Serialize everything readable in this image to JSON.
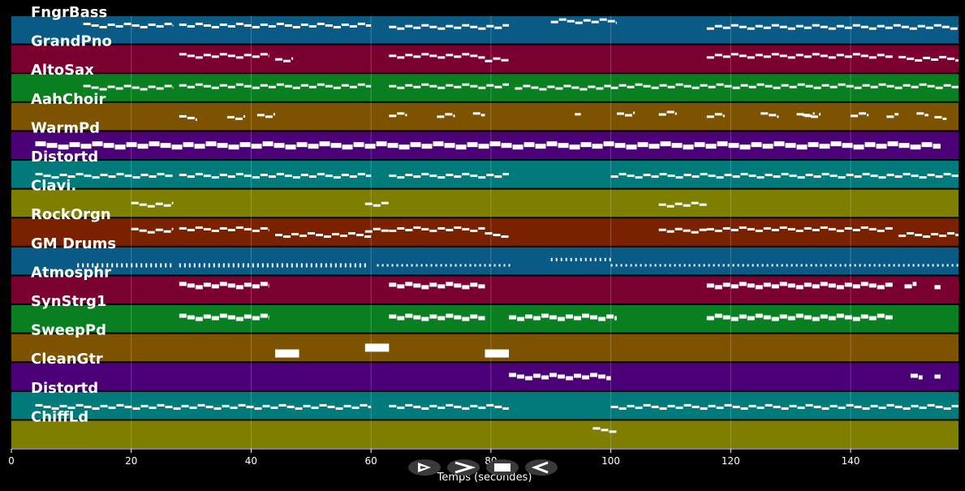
{
  "chart_data": {
    "type": "piano-roll",
    "xlabel": "Temps (secondes)",
    "xlim": [
      0,
      158
    ],
    "xticks": [
      0,
      20,
      40,
      60,
      80,
      100,
      120,
      140
    ],
    "tracks": [
      {
        "name": "FngrBass",
        "color": "#0a5a86",
        "segments": [
          [
            12,
            27,
            0.35
          ],
          [
            28,
            60,
            0.35
          ],
          [
            63,
            83,
            0.4
          ],
          [
            90,
            101,
            0.2
          ],
          [
            116,
            158,
            0.4
          ]
        ],
        "style": "thin"
      },
      {
        "name": "GrandPno",
        "color": "#7a0030",
        "segments": [
          [
            28,
            43,
            0.4
          ],
          [
            44,
            47,
            0.55
          ],
          [
            63,
            79,
            0.4
          ],
          [
            79,
            83,
            0.55
          ],
          [
            116,
            147,
            0.4
          ],
          [
            148,
            158,
            0.5
          ]
        ],
        "style": "thin"
      },
      {
        "name": "AltoSax",
        "color": "#0a7f22",
        "segments": [
          [
            12,
            27,
            0.5
          ],
          [
            28,
            60,
            0.45
          ],
          [
            63,
            83,
            0.45
          ],
          [
            84,
            100,
            0.5
          ],
          [
            100,
            158,
            0.45
          ]
        ],
        "style": "thin"
      },
      {
        "name": "AahChoir",
        "color": "#7d5200",
        "segments": [
          [
            28,
            31,
            0.55
          ],
          [
            36,
            39,
            0.55
          ],
          [
            41,
            44,
            0.45
          ],
          [
            63,
            66,
            0.45
          ],
          [
            71,
            74,
            0.45
          ],
          [
            77,
            79,
            0.45
          ],
          [
            94,
            95,
            0.45
          ],
          [
            101,
            104,
            0.4
          ],
          [
            108,
            111,
            0.4
          ],
          [
            116,
            119,
            0.45
          ],
          [
            125,
            128,
            0.45
          ],
          [
            131,
            134,
            0.45
          ],
          [
            132,
            135,
            0.45
          ],
          [
            140,
            143,
            0.45
          ],
          [
            146,
            148,
            0.45
          ],
          [
            151,
            153,
            0.45
          ],
          [
            154,
            156,
            0.55
          ]
        ],
        "style": "thin"
      },
      {
        "name": "WarmPd",
        "color": "#4b0078",
        "segments": [
          [
            4,
            155,
            0.5
          ]
        ],
        "style": "thick"
      },
      {
        "name": "Distortd",
        "color": "#007a7a",
        "segments": [
          [
            4,
            27,
            0.55
          ],
          [
            28,
            60,
            0.55
          ],
          [
            63,
            83,
            0.55
          ],
          [
            100,
            158,
            0.55
          ]
        ],
        "style": "thin"
      },
      {
        "name": "Clavi.",
        "color": "#7e7e00",
        "segments": [
          [
            20,
            27,
            0.55
          ],
          [
            59,
            63,
            0.55
          ],
          [
            108,
            116,
            0.55
          ]
        ],
        "style": "thin"
      },
      {
        "name": "RockOrgn",
        "color": "#7a2200",
        "segments": [
          [
            20,
            27,
            0.45
          ],
          [
            28,
            43,
            0.4
          ],
          [
            44,
            60,
            0.6
          ],
          [
            59,
            63,
            0.45
          ],
          [
            63,
            79,
            0.4
          ],
          [
            79,
            83,
            0.6
          ],
          [
            108,
            116,
            0.45
          ],
          [
            116,
            147,
            0.4
          ],
          [
            148,
            158,
            0.6
          ]
        ],
        "style": "thin"
      },
      {
        "name": "GM Drums",
        "color": "#0a5a86",
        "segments": [
          [
            11,
            27,
            0.65
          ],
          [
            28,
            59,
            0.65
          ],
          [
            61,
            83,
            0.65
          ],
          [
            90,
            100,
            0.45
          ],
          [
            100,
            158,
            0.65
          ]
        ],
        "style": "dotted"
      },
      {
        "name": "Atmosphr",
        "color": "#7a0030",
        "segments": [
          [
            28,
            43,
            0.35
          ],
          [
            63,
            79,
            0.35
          ],
          [
            116,
            147,
            0.35
          ],
          [
            149,
            151,
            0.35
          ],
          [
            154,
            155,
            0.35
          ]
        ],
        "style": "medium"
      },
      {
        "name": "SynStrg1",
        "color": "#0a7f22",
        "segments": [
          [
            28,
            43,
            0.45
          ],
          [
            63,
            79,
            0.45
          ],
          [
            83,
            101,
            0.45
          ],
          [
            116,
            147,
            0.45
          ]
        ],
        "style": "medium"
      },
      {
        "name": "SweepPd",
        "color": "#7d5200",
        "segments": [
          [
            44,
            48,
            0.7
          ],
          [
            59,
            63,
            0.5
          ],
          [
            79,
            83,
            0.7
          ]
        ],
        "style": "block"
      },
      {
        "name": "CleanGtr",
        "color": "#4b0078",
        "segments": [
          [
            83,
            100,
            0.5
          ],
          [
            150,
            152,
            0.5
          ],
          [
            154,
            155,
            0.5
          ]
        ],
        "style": "medium"
      },
      {
        "name": "Distortd",
        "color": "#007a7a",
        "segments": [
          [
            4,
            60,
            0.55
          ],
          [
            63,
            83,
            0.55
          ],
          [
            100,
            158,
            0.55
          ]
        ],
        "style": "thin"
      },
      {
        "name": "ChiffLd",
        "color": "#7e7e00",
        "segments": [
          [
            97,
            101,
            0.35
          ]
        ],
        "style": "thin"
      }
    ]
  },
  "controls": [
    {
      "name": "play",
      "glyph": "play-icon"
    },
    {
      "name": "next",
      "glyph": "chevron-right-icon"
    },
    {
      "name": "stop",
      "glyph": "stop-icon"
    },
    {
      "name": "back",
      "glyph": "back-icon"
    }
  ]
}
